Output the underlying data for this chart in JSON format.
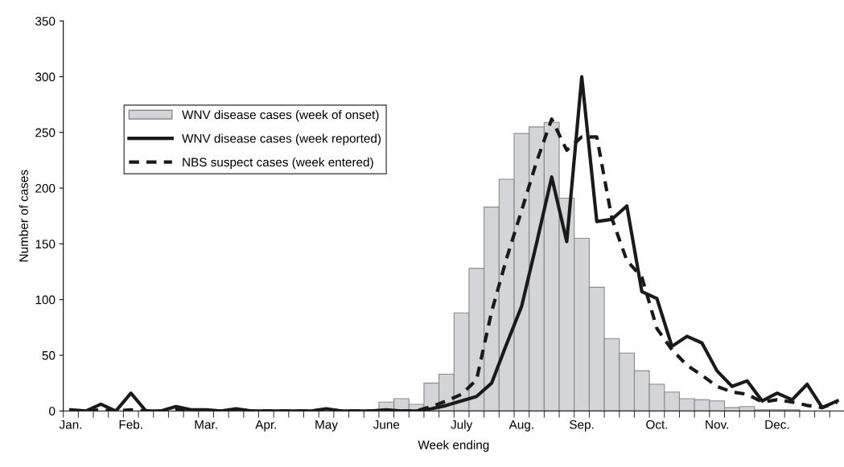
{
  "chart_data": {
    "type": "bar",
    "xlabel": "Week ending",
    "ylabel": "Number of cases",
    "categories": [
      "Jan.",
      null,
      null,
      null,
      "Feb.",
      null,
      null,
      null,
      null,
      "Mar.",
      null,
      null,
      null,
      "Apr.",
      null,
      null,
      null,
      "May",
      null,
      null,
      null,
      "June",
      null,
      null,
      null,
      null,
      "July",
      null,
      null,
      null,
      "Aug.",
      null,
      null,
      null,
      "Sep.",
      null,
      null,
      null,
      null,
      "Oct.",
      null,
      null,
      null,
      "Nov.",
      null,
      null,
      null,
      "Dec.",
      null,
      null,
      null,
      null
    ],
    "ylim": [
      0,
      350
    ],
    "yticks": [
      0,
      50,
      100,
      150,
      200,
      250,
      300,
      350
    ],
    "grid": false,
    "legend": "top left",
    "series": [
      {
        "name": "WNV disease cases (week of onset)",
        "color": "#d4d5d8",
        "values": [
          0,
          0,
          0,
          0,
          0,
          0,
          0,
          0,
          0,
          0,
          0,
          0,
          0,
          0,
          0,
          0,
          0,
          0,
          0,
          0,
          0,
          8,
          11,
          6,
          25,
          33,
          88,
          128,
          183,
          208,
          249,
          255,
          259,
          191,
          155,
          111,
          65,
          52,
          36,
          24,
          17,
          11,
          10,
          9,
          3,
          4,
          1,
          1,
          1,
          0,
          0,
          0
        ]
      },
      {
        "name": "WNV disease cases (week reported)",
        "type": "line",
        "color": "#1a1a1a",
        "line_style": "solid",
        "values": [
          1,
          0,
          6,
          0,
          16,
          0,
          0,
          4,
          1,
          1,
          0,
          2,
          0,
          0,
          0,
          0,
          0,
          2,
          0,
          0,
          0,
          1,
          0,
          0,
          2,
          5,
          9,
          13,
          25,
          60,
          94,
          151,
          210,
          152,
          300,
          170,
          172,
          184,
          107,
          101,
          58,
          67,
          61,
          36,
          22,
          27,
          9,
          16,
          10,
          24,
          3,
          9
        ]
      },
      {
        "name": "NBS suspect cases (week entered)",
        "type": "line",
        "color": "#1a1a1a",
        "line_style": "dashed",
        "values": [
          0,
          0,
          1,
          0,
          1,
          0,
          0,
          1,
          0,
          0,
          0,
          1,
          0,
          0,
          0,
          0,
          0,
          1,
          0,
          0,
          0,
          0,
          0,
          0,
          4,
          9,
          15,
          28,
          89,
          137,
          180,
          224,
          262,
          234,
          246,
          246,
          173,
          135,
          120,
          74,
          55,
          41,
          32,
          22,
          17,
          15,
          8,
          10,
          8,
          5,
          3,
          8
        ]
      }
    ]
  }
}
